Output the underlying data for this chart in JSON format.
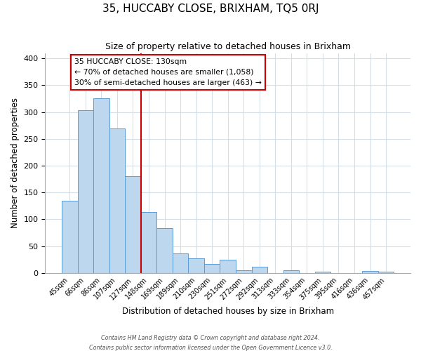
{
  "title": "35, HUCCABY CLOSE, BRIXHAM, TQ5 0RJ",
  "subtitle": "Size of property relative to detached houses in Brixham",
  "xlabel": "Distribution of detached houses by size in Brixham",
  "ylabel": "Number of detached properties",
  "bar_labels": [
    "45sqm",
    "66sqm",
    "86sqm",
    "107sqm",
    "127sqm",
    "148sqm",
    "169sqm",
    "189sqm",
    "210sqm",
    "230sqm",
    "251sqm",
    "272sqm",
    "292sqm",
    "313sqm",
    "333sqm",
    "354sqm",
    "375sqm",
    "395sqm",
    "416sqm",
    "436sqm",
    "457sqm"
  ],
  "bar_values": [
    135,
    303,
    325,
    270,
    180,
    113,
    83,
    37,
    27,
    17,
    25,
    5,
    11,
    0,
    5,
    0,
    2,
    0,
    0,
    4,
    3
  ],
  "bar_color": "#bdd7ee",
  "bar_edge_color": "#5b9bd5",
  "vline_x_label": "127sqm",
  "vline_color": "#cc0000",
  "annotation_title": "35 HUCCABY CLOSE: 130sqm",
  "annotation_line1": "← 70% of detached houses are smaller (1,058)",
  "annotation_line2": "30% of semi-detached houses are larger (463) →",
  "annotation_box_color": "#ffffff",
  "annotation_box_edge": "#cc0000",
  "ylim": [
    0,
    410
  ],
  "yticks": [
    0,
    50,
    100,
    150,
    200,
    250,
    300,
    350,
    400
  ],
  "footer1": "Contains HM Land Registry data © Crown copyright and database right 2024.",
  "footer2": "Contains public sector information licensed under the Open Government Licence v3.0.",
  "bg_color": "#ffffff",
  "grid_color": "#d4dde8"
}
